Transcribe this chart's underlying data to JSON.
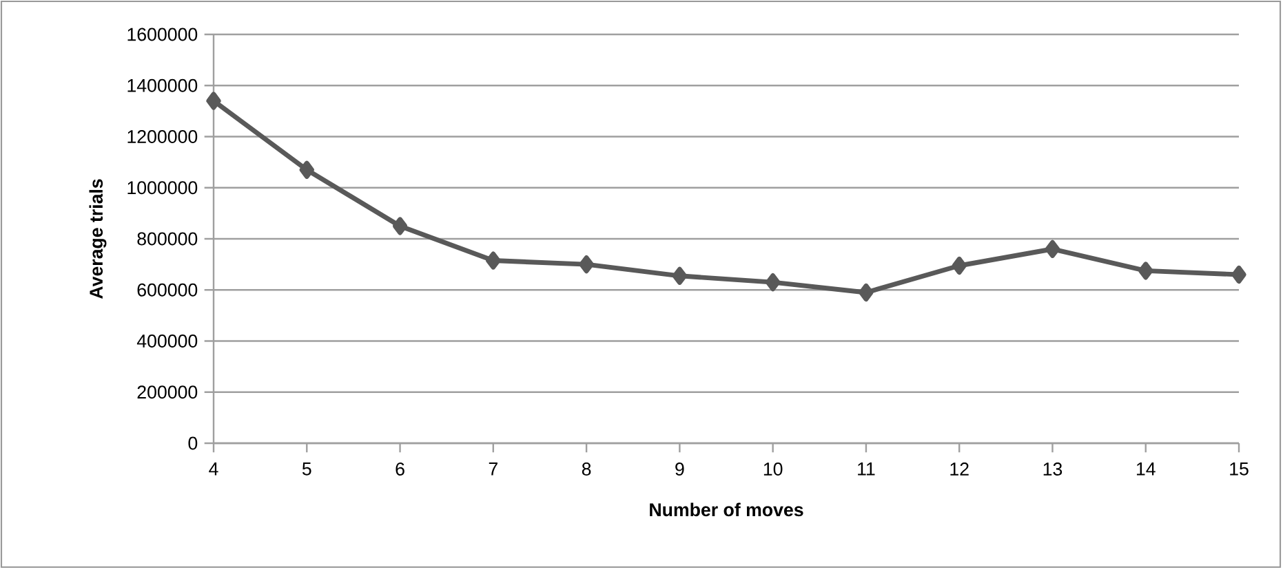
{
  "chart_data": {
    "type": "line",
    "xlabel": "Number of moves",
    "ylabel": "Average trials",
    "x": [
      4,
      5,
      6,
      7,
      8,
      9,
      10,
      11,
      12,
      13,
      14,
      15
    ],
    "series": [
      {
        "color": "#595959",
        "values": [
          1340000,
          1070000,
          850000,
          715000,
          700000,
          655000,
          630000,
          590000,
          695000,
          760000,
          675000,
          660000
        ]
      }
    ],
    "xlim": [
      4,
      15
    ],
    "xticks": [
      4,
      5,
      6,
      7,
      8,
      9,
      10,
      11,
      12,
      13,
      14,
      15
    ],
    "ylim": [
      0,
      1600000
    ],
    "yticks": [
      0,
      200000,
      400000,
      600000,
      800000,
      1000000,
      1200000,
      1400000,
      1600000
    ],
    "grid": "y",
    "marker": "diamond",
    "line_style": "solid"
  }
}
